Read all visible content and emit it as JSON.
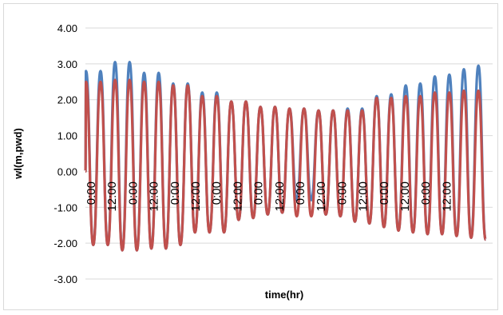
{
  "chart_data": {
    "type": "line",
    "title": "",
    "xlabel": "time(hr)",
    "ylabel": "wl(m,pwd)",
    "ylim": [
      -3.0,
      4.0
    ],
    "ytick_step": 1.0,
    "yticks": [
      "-3.00",
      "-2.00",
      "-1.00",
      "0.00",
      "1.00",
      "2.00",
      "3.00",
      "4.00"
    ],
    "x_range_hr": [
      0,
      348
    ],
    "grid": true,
    "legend": "none",
    "xtick_labels": [
      {
        "t": 0,
        "label": "0:00"
      },
      {
        "t": 12,
        "label": "12:00"
      },
      {
        "t": 24,
        "label": "0:00"
      },
      {
        "t": 36,
        "label": "12:00"
      },
      {
        "t": 48,
        "label": "0:00"
      },
      {
        "t": 60,
        "label": "12:00"
      },
      {
        "t": 72,
        "label": "0:00"
      },
      {
        "t": 84,
        "label": "12:00"
      },
      {
        "t": 96,
        "label": "0:00"
      },
      {
        "t": 108,
        "label": "12:00"
      },
      {
        "t": 120,
        "label": "0:00"
      },
      {
        "t": 132,
        "label": "12:00"
      },
      {
        "t": 144,
        "label": "0:00"
      },
      {
        "t": 156,
        "label": "12:00"
      },
      {
        "t": 168,
        "label": "0:00"
      },
      {
        "t": 180,
        "label": "12:00"
      },
      {
        "t": 192,
        "label": "0:00"
      },
      {
        "t": 204,
        "label": "12:00"
      }
    ],
    "series": [
      {
        "color": "#4f81bd",
        "highs": [
          2.8,
          2.8,
          3.05,
          3.05,
          2.75,
          2.75,
          2.45,
          2.45,
          2.2,
          2.2,
          1.95,
          1.95,
          1.8,
          1.8,
          1.75,
          1.75,
          1.7,
          1.7,
          1.75,
          1.75,
          2.1,
          2.15,
          2.4,
          2.45,
          2.65,
          2.7,
          2.85,
          2.95,
          3.05,
          3.05,
          2.75,
          2.7,
          2.3,
          2.25,
          1.95,
          1.9,
          1.6,
          1.55,
          1.5,
          1.5,
          1.55,
          1.6,
          2.05,
          2.1,
          2.35,
          2.45,
          2.6,
          2.7,
          2.7
        ],
        "lows": [
          -2.05,
          -2.05,
          -2.2,
          -2.2,
          -2.15,
          -2.15,
          -2.05,
          -1.7,
          -1.7,
          -1.7,
          -1.35,
          -1.3,
          -1.2,
          -1.15,
          -0.8,
          -0.8,
          -1.2,
          -1.25,
          -1.4,
          -1.45,
          -1.55,
          -1.65,
          -1.7,
          -1.75,
          -1.75,
          -1.8,
          -1.85,
          -1.9,
          -1.9,
          -1.85,
          -1.8,
          -1.65,
          -1.55,
          -1.35,
          -1.35,
          -1.2,
          -1.05,
          -1.05,
          -1.0,
          -0.95,
          -1.3,
          -1.45,
          -1.7,
          -1.85,
          -2.05,
          -2.15,
          -2.25,
          -2.3
        ]
      },
      {
        "color": "#c0504d",
        "highs": [
          2.5,
          2.5,
          2.55,
          2.55,
          2.5,
          2.5,
          2.4,
          2.4,
          2.1,
          2.1,
          1.95,
          1.95,
          1.8,
          1.8,
          1.75,
          1.75,
          1.7,
          1.7,
          1.7,
          1.7,
          2.05,
          2.05,
          2.1,
          2.1,
          2.2,
          2.2,
          2.25,
          2.25,
          2.25,
          2.25,
          2.2,
          2.2,
          2.0,
          2.0,
          1.85,
          1.85,
          1.65,
          1.65,
          1.45,
          1.45,
          1.55,
          1.55,
          1.95,
          2.0,
          2.2,
          2.3,
          2.55,
          2.65,
          2.65
        ],
        "lows": [
          -2.05,
          -2.05,
          -2.2,
          -2.2,
          -2.15,
          -2.15,
          -2.05,
          -1.7,
          -1.7,
          -1.7,
          -1.35,
          -1.3,
          -1.2,
          -1.15,
          -1.25,
          -1.25,
          -1.2,
          -1.25,
          -1.4,
          -1.45,
          -1.55,
          -1.65,
          -1.7,
          -1.75,
          -1.75,
          -1.8,
          -1.85,
          -1.9,
          -1.9,
          -1.85,
          -1.8,
          -1.65,
          -1.55,
          -1.35,
          -1.35,
          -1.2,
          -1.05,
          -1.05,
          -1.0,
          -0.95,
          -1.3,
          -1.45,
          -1.7,
          -1.85,
          -2.05,
          -2.15,
          -2.25,
          -2.3
        ]
      }
    ]
  }
}
